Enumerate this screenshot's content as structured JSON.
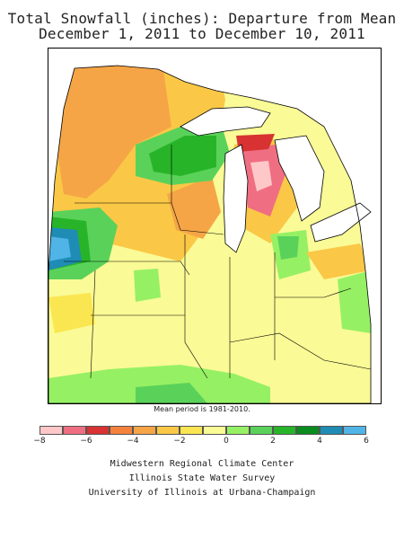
{
  "title_line1": "Total Snowfall (inches): Departure from Mean",
  "title_line2": "December 1, 2011 to December 10, 2011",
  "period_note": "Mean period is 1981-2010.",
  "legend": {
    "colors": [
      "#ffc8c8",
      "#f06e82",
      "#d83232",
      "#f5823c",
      "#f5a546",
      "#fac846",
      "#fae650",
      "#fafa96",
      "#96f064",
      "#5ad25a",
      "#28b428",
      "#0a8c1e",
      "#1e8cb4",
      "#50b4e6"
    ],
    "ticks": [
      "−8",
      "−6",
      "−4",
      "−2",
      "0",
      "2",
      "4",
      "6"
    ]
  },
  "credits": [
    "Midwestern Regional Climate Center",
    "Illinois State Water Survey",
    "University of Illinois at Urbana-Champaign"
  ],
  "colors": {
    "background_fill": "#fafa96",
    "lake_fill": "#ffffff",
    "border": "#000000"
  }
}
